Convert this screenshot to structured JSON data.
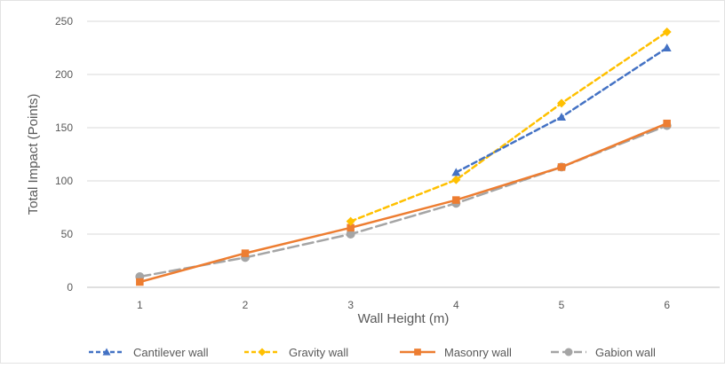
{
  "chart_data": {
    "type": "line",
    "title": "",
    "xlabel": "Wall Height (m)",
    "ylabel": "Total Impact (Points)",
    "x": [
      1,
      2,
      3,
      4,
      5,
      6
    ],
    "ylim": [
      0,
      250
    ],
    "yticks": [
      0,
      50,
      100,
      150,
      200,
      250
    ],
    "grid": "horizontal",
    "legend_position": "bottom",
    "series": [
      {
        "name": "Cantilever wall",
        "color": "#4472C4",
        "dash": "dashed",
        "marker": "triangle",
        "points": [
          [
            4,
            108
          ],
          [
            5,
            160
          ],
          [
            6,
            225
          ]
        ]
      },
      {
        "name": "Gravity wall",
        "color": "#FFC000",
        "dash": "dashed",
        "marker": "diamond",
        "points": [
          [
            3,
            62
          ],
          [
            4,
            101
          ],
          [
            5,
            173
          ],
          [
            6,
            240
          ]
        ]
      },
      {
        "name": "Masonry wall",
        "color": "#ED7D31",
        "dash": "solid",
        "marker": "square",
        "points": [
          [
            1,
            5
          ],
          [
            2,
            32
          ],
          [
            3,
            56
          ],
          [
            4,
            82
          ],
          [
            5,
            113
          ],
          [
            6,
            154
          ]
        ]
      },
      {
        "name": "Gabion wall",
        "color": "#A5A5A5",
        "dash": "longdash",
        "marker": "circle",
        "points": [
          [
            1,
            10
          ],
          [
            2,
            28
          ],
          [
            3,
            50
          ],
          [
            4,
            79
          ],
          [
            5,
            113
          ],
          [
            6,
            152
          ]
        ]
      }
    ]
  }
}
